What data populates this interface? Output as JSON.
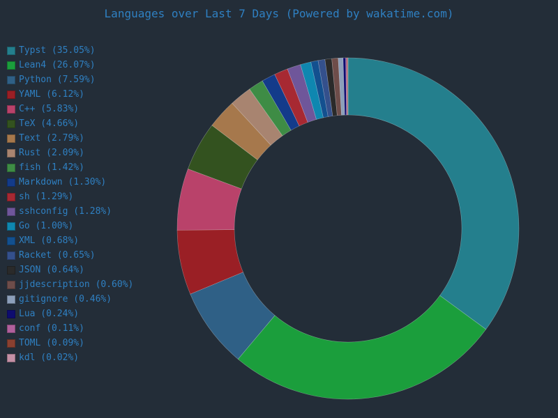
{
  "chart_data": {
    "type": "pie",
    "variant": "donut",
    "title": "Languages over Last 7 Days (Powered by wakatime.com)",
    "legend_position": "left",
    "start_angle": "top",
    "direction": "clockwise",
    "slices": [
      {
        "label": "Typst",
        "value": 35.05,
        "legend": "Typst (35.05%)",
        "color": "#247f8d"
      },
      {
        "label": "Lean4",
        "value": 26.07,
        "legend": "Lean4 (26.07%)",
        "color": "#1b9e3c"
      },
      {
        "label": "Python",
        "value": 7.59,
        "legend": "Python (7.59%)",
        "color": "#2f6086"
      },
      {
        "label": "YAML",
        "value": 6.12,
        "legend": "YAML (6.12%)",
        "color": "#9a1f25"
      },
      {
        "label": "C++",
        "value": 5.83,
        "legend": "C++ (5.83%)",
        "color": "#b9426a"
      },
      {
        "label": "TeX",
        "value": 4.66,
        "legend": "TeX (4.66%)",
        "color": "#33521f"
      },
      {
        "label": "Text",
        "value": 2.79,
        "legend": "Text (2.79%)",
        "color": "#a6784c"
      },
      {
        "label": "Rust",
        "value": 2.09,
        "legend": "Rust (2.09%)",
        "color": "#a88470"
      },
      {
        "label": "fish",
        "value": 1.42,
        "legend": "fish (1.42%)",
        "color": "#3e8c45"
      },
      {
        "label": "Markdown",
        "value": 1.3,
        "legend": "Markdown (1.30%)",
        "color": "#133b8a"
      },
      {
        "label": "sh",
        "value": 1.29,
        "legend": "sh (1.29%)",
        "color": "#a72932"
      },
      {
        "label": "sshconfig",
        "value": 1.28,
        "legend": "sshconfig (1.28%)",
        "color": "#6f569a"
      },
      {
        "label": "Go",
        "value": 1.0,
        "legend": "Go (1.00%)",
        "color": "#0f87b0"
      },
      {
        "label": "XML",
        "value": 0.68,
        "legend": "XML (0.68%)",
        "color": "#13508f"
      },
      {
        "label": "Racket",
        "value": 0.65,
        "legend": "Racket (0.65%)",
        "color": "#34508c"
      },
      {
        "label": "JSON",
        "value": 0.64,
        "legend": "JSON (0.64%)",
        "color": "#2a2a2a"
      },
      {
        "label": "jjdescription",
        "value": 0.6,
        "legend": "jjdescription (0.60%)",
        "color": "#6e4d4a"
      },
      {
        "label": "gitignore",
        "value": 0.46,
        "legend": "gitignore (0.46%)",
        "color": "#8c9fba"
      },
      {
        "label": "Lua",
        "value": 0.24,
        "legend": "Lua (0.24%)",
        "color": "#0e0c70"
      },
      {
        "label": "conf",
        "value": 0.11,
        "legend": "conf (0.11%)",
        "color": "#b0609c"
      },
      {
        "label": "TOML",
        "value": 0.09,
        "legend": "TOML (0.09%)",
        "color": "#8a4030"
      },
      {
        "label": "kdl",
        "value": 0.02,
        "legend": "kdl (0.02%)",
        "color": "#c490a6"
      }
    ]
  },
  "colors": {
    "background": "#232d38",
    "text": "#2f80c2"
  }
}
